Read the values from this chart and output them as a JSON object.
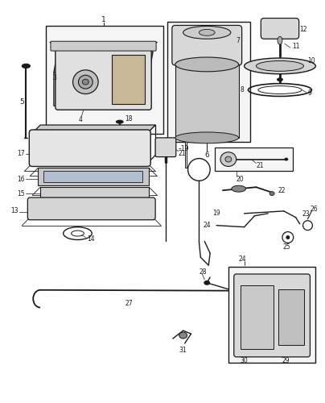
{
  "bg_color": "#ffffff",
  "line_color": "#1a1a1a",
  "fig_width": 4.04,
  "fig_height": 5.0,
  "dpi": 100
}
